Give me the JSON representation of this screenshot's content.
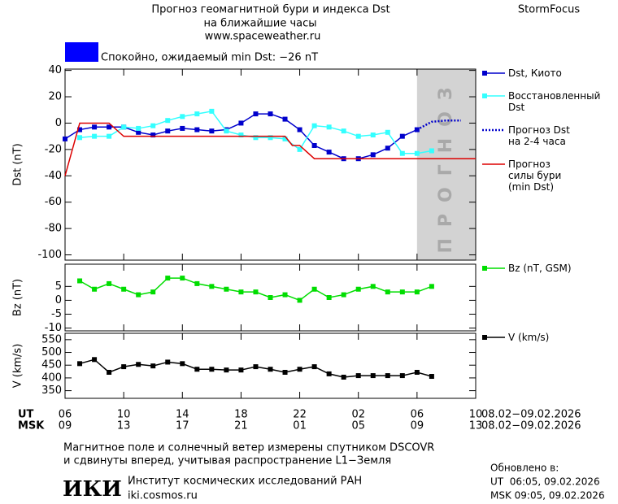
{
  "header": {
    "title_line1": "Прогноз геомагнитной бури и индекса Dst",
    "title_line2": "на ближайшие часы",
    "url": "www.spaceweather.ru",
    "brand": "StormFocus"
  },
  "status": {
    "text": "Спокойно, ожидаемый min Dst: −26 nT",
    "color": "#0000ff"
  },
  "chart_data": [
    {
      "type": "line",
      "ylabel": "Dst (nT)",
      "xlim": [
        0,
        28
      ],
      "xticks": [
        0,
        4,
        8,
        12,
        16,
        20,
        24,
        28
      ],
      "ylim": [
        -104,
        41
      ],
      "yticks": [
        40,
        20,
        0,
        -20,
        -40,
        -60,
        -80,
        -100
      ],
      "forecast_zone": {
        "x": [
          24,
          28
        ],
        "label": "ПРОГНОЗ",
        "color": "#d3d3d3"
      },
      "series": [
        {
          "name": "Dst, Киото",
          "color": "#0000cc",
          "marker": "square",
          "dash": "solid",
          "x": [
            0,
            1,
            2,
            3,
            4,
            5,
            6,
            7,
            8,
            9,
            10,
            11,
            12,
            13,
            14,
            15,
            16,
            17,
            18,
            19,
            20,
            21,
            22,
            23,
            24
          ],
          "values": [
            -12,
            -5,
            -3,
            -3,
            -3,
            -7,
            -9,
            -6,
            -4,
            -5,
            -6,
            -5,
            0,
            7,
            7,
            3,
            -5,
            -17,
            -22,
            -27,
            -27,
            -24,
            -19,
            -10,
            -5
          ]
        },
        {
          "name": "Восстановленный\nDst",
          "color": "#33ffff",
          "marker": "square",
          "dash": "solid",
          "x": [
            1,
            2,
            3,
            4,
            5,
            6,
            7,
            8,
            9,
            10,
            11,
            12,
            13,
            14,
            15,
            16,
            17,
            18,
            19,
            20,
            21,
            22,
            23,
            24,
            25
          ],
          "values": [
            -11,
            -10,
            -10,
            -3,
            -4,
            -2,
            2,
            5,
            7,
            9,
            -6,
            -9,
            -11,
            -11,
            -12,
            -20,
            -2,
            -3,
            -6,
            -10,
            -9,
            -7,
            -23,
            -23,
            -21
          ]
        },
        {
          "name": "Прогноз Dst\nна 2-4 часа",
          "color": "#0000cc",
          "marker": "none",
          "dash": "dotted",
          "x": [
            24,
            25,
            26,
            27
          ],
          "values": [
            -5,
            1,
            2,
            2
          ]
        },
        {
          "name": "Прогноз\nсилы бури\n(min Dst)",
          "color": "#dd0000",
          "marker": "none",
          "dash": "solid",
          "x": [
            0,
            1,
            3,
            4,
            15,
            15.5,
            16,
            17,
            28
          ],
          "values": [
            -40,
            0,
            0,
            -10,
            -10,
            -17,
            -17,
            -27,
            -27
          ]
        }
      ]
    },
    {
      "type": "line",
      "ylabel": "Bz (nT)",
      "xlim": [
        0,
        28
      ],
      "xticks": [
        0,
        4,
        8,
        12,
        16,
        20,
        24,
        28
      ],
      "ylim": [
        -11,
        13
      ],
      "yticks": [
        5,
        0,
        -5,
        -10
      ],
      "series": [
        {
          "name": "Bz (nT, GSM)",
          "color": "#00dd00",
          "marker": "square",
          "dash": "solid",
          "x": [
            1,
            2,
            3,
            4,
            5,
            6,
            7,
            8,
            9,
            10,
            11,
            12,
            13,
            14,
            15,
            16,
            17,
            18,
            19,
            20,
            21,
            22,
            23,
            24,
            25
          ],
          "values": [
            7,
            4,
            6,
            4,
            2,
            3,
            8,
            8,
            6,
            5,
            4,
            3,
            3,
            1,
            2,
            0,
            4,
            1,
            2,
            4,
            5,
            3,
            3,
            3,
            5
          ]
        }
      ]
    },
    {
      "type": "line",
      "ylabel": "V (km/s)",
      "xlim": [
        0,
        28
      ],
      "xticks": [
        {
          "value": 0,
          "label": "06"
        },
        {
          "value": 4,
          "label": "10"
        },
        {
          "value": 8,
          "label": "14"
        },
        {
          "value": 12,
          "label": "18"
        },
        {
          "value": 16,
          "label": "22"
        },
        {
          "value": 20,
          "label": "02"
        },
        {
          "value": 24,
          "label": "06"
        },
        {
          "value": 28,
          "label": "10"
        }
      ],
      "x2ticks": [
        {
          "value": 0,
          "label": "09"
        },
        {
          "value": 4,
          "label": "13"
        },
        {
          "value": 8,
          "label": "17"
        },
        {
          "value": 12,
          "label": "21"
        },
        {
          "value": 16,
          "label": "01"
        },
        {
          "value": 20,
          "label": "05"
        },
        {
          "value": 24,
          "label": "09"
        },
        {
          "value": 28,
          "label": "13"
        }
      ],
      "xlabel": "UT",
      "x2label": "MSK",
      "xdates": "08.02−09.02.2026",
      "x2dates": "08.02−09.02.2026",
      "ylim": [
        320,
        575
      ],
      "yticks": [
        550,
        500,
        450,
        400,
        350
      ],
      "series": [
        {
          "name": "V (km/s)",
          "color": "#000000",
          "marker": "square",
          "dash": "solid",
          "x": [
            1,
            2,
            3,
            4,
            5,
            6,
            7,
            8,
            9,
            10,
            11,
            12,
            13,
            14,
            15,
            16,
            17,
            18,
            19,
            20,
            21,
            22,
            23,
            24,
            25
          ],
          "values": [
            456,
            472,
            422,
            444,
            453,
            447,
            462,
            456,
            434,
            434,
            431,
            431,
            444,
            434,
            422,
            434,
            444,
            416,
            403,
            409,
            409,
            409,
            409,
            422,
            406
          ]
        }
      ]
    }
  ],
  "footer": {
    "note_line1": "Магнитное поле и солнечный ветер измерены спутником DSCOVR",
    "note_line2": "и сдвинуты вперед, учитывая распространение L1−Земля",
    "logo": "ИКИ",
    "institute": "Институт космических исследований РАН",
    "site": "iki.cosmos.ru",
    "updated_label": "Обновлено в:",
    "updated_ut": "UT  06:05, 09.02.2026",
    "updated_msk": "MSK 09:05, 09.02.2026"
  }
}
